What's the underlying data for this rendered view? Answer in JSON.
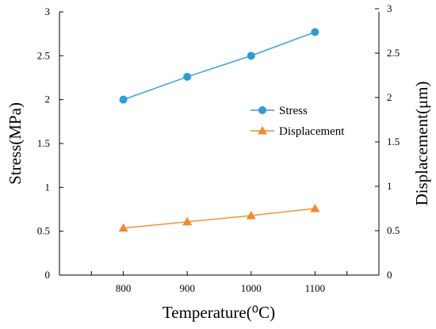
{
  "chart_data": {
    "type": "line",
    "xlabel": "Temperature(⁰C)",
    "ylabel": "Stress(MPa)",
    "y2label": "Displacement(μm)",
    "x": [
      800,
      900,
      1000,
      1100
    ],
    "xlim": [
      700,
      1200
    ],
    "xticks": [
      800,
      900,
      1000,
      1100
    ],
    "ylim": [
      0,
      3
    ],
    "y2lim": [
      0,
      3
    ],
    "yticks": [
      "0",
      "0.5",
      "1",
      "1.5",
      "2",
      "2.5",
      "3"
    ],
    "y2ticks": [
      "0",
      "0.5",
      "1",
      "1.5",
      "2",
      "2.5",
      "3"
    ],
    "grid": false,
    "legend_position": "center-right",
    "series": [
      {
        "name": "Stress",
        "axis": "left",
        "marker": "circle",
        "color": "#2e9bd6",
        "values": [
          2.0,
          2.26,
          2.5,
          2.77
        ]
      },
      {
        "name": "Displacement",
        "axis": "right",
        "marker": "triangle",
        "color": "#f28a30",
        "values": [
          0.53,
          0.6,
          0.67,
          0.75
        ]
      }
    ]
  }
}
